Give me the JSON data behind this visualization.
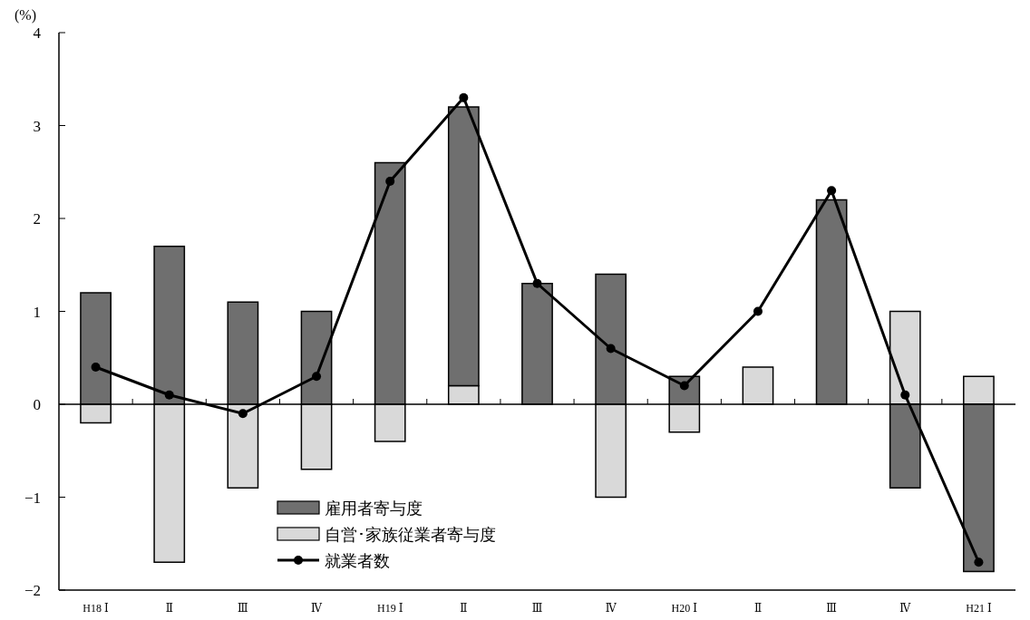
{
  "chart_data": {
    "type": "bar",
    "stacked": true,
    "ylabel": "(%)",
    "categories": [
      "H18 Ⅰ",
      "Ⅱ",
      "Ⅲ",
      "Ⅳ",
      "H19 Ⅰ",
      "Ⅱ",
      "Ⅲ",
      "Ⅳ",
      "H20 Ⅰ",
      "Ⅱ",
      "Ⅲ",
      "Ⅳ",
      "H21 Ⅰ"
    ],
    "series": [
      {
        "name": "自営･家族従業者寄与度",
        "color": "#d9d9d9",
        "values": [
          -0.2,
          -1.7,
          -0.9,
          -0.7,
          -0.4,
          0.2,
          null,
          -1.0,
          -0.3,
          0.4,
          null,
          1.0,
          0.3
        ]
      },
      {
        "name": "雇用者寄与度",
        "color": "#6f6f6f",
        "values": [
          1.2,
          1.7,
          1.1,
          1.0,
          2.6,
          3.0,
          1.3,
          1.4,
          0.3,
          null,
          2.2,
          -0.9,
          -1.8
        ]
      },
      {
        "name": "就業者数",
        "type": "line",
        "color": "#000000",
        "marker": "circle",
        "values": [
          0.4,
          0.1,
          -0.1,
          0.3,
          2.4,
          3.3,
          1.3,
          0.6,
          0.2,
          1.0,
          2.3,
          0.1,
          -1.7
        ]
      }
    ],
    "ylim": [
      -2,
      4
    ],
    "yticks": [
      -2,
      -1,
      0,
      1,
      2,
      3,
      4
    ],
    "legend": "bottom"
  }
}
